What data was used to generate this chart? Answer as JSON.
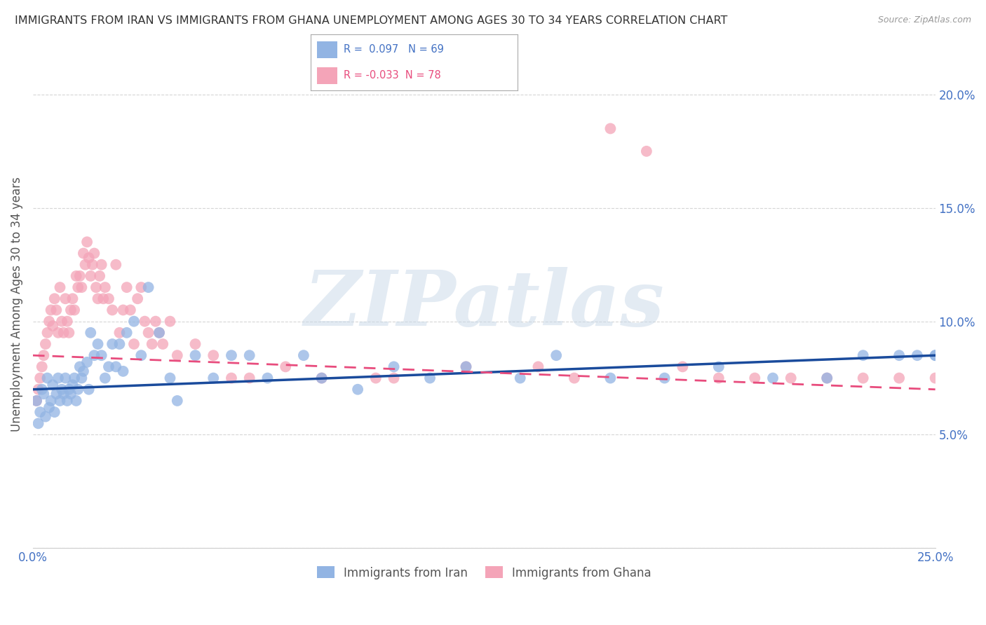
{
  "title": "IMMIGRANTS FROM IRAN VS IMMIGRANTS FROM GHANA UNEMPLOYMENT AMONG AGES 30 TO 34 YEARS CORRELATION CHART",
  "source": "Source: ZipAtlas.com",
  "ylabel": "Unemployment Among Ages 30 to 34 years",
  "xlim": [
    0.0,
    25.0
  ],
  "ylim": [
    0.0,
    21.5
  ],
  "ytick_vals": [
    0.0,
    5.0,
    10.0,
    15.0,
    20.0
  ],
  "ytick_labels": [
    "",
    "5.0%",
    "10.0%",
    "15.0%",
    "20.0%"
  ],
  "series_iran": {
    "label": "Immigrants from Iran",
    "color": "#92b4e3",
    "R": 0.097,
    "N": 69,
    "x": [
      0.1,
      0.15,
      0.2,
      0.25,
      0.3,
      0.35,
      0.4,
      0.45,
      0.5,
      0.55,
      0.6,
      0.65,
      0.7,
      0.75,
      0.8,
      0.85,
      0.9,
      0.95,
      1.0,
      1.05,
      1.1,
      1.15,
      1.2,
      1.25,
      1.3,
      1.35,
      1.4,
      1.5,
      1.55,
      1.6,
      1.7,
      1.8,
      1.9,
      2.0,
      2.1,
      2.2,
      2.3,
      2.4,
      2.5,
      2.6,
      2.8,
      3.0,
      3.2,
      3.5,
      3.8,
      4.0,
      4.5,
      5.0,
      5.5,
      6.0,
      6.5,
      7.5,
      8.0,
      9.0,
      10.0,
      11.0,
      12.0,
      13.5,
      14.5,
      16.0,
      17.5,
      19.0,
      20.5,
      22.0,
      23.0,
      24.0,
      24.5,
      25.0,
      25.0
    ],
    "y": [
      6.5,
      5.5,
      6.0,
      7.0,
      6.8,
      5.8,
      7.5,
      6.2,
      6.5,
      7.2,
      6.0,
      6.8,
      7.5,
      6.5,
      7.0,
      6.8,
      7.5,
      6.5,
      7.0,
      6.8,
      7.2,
      7.5,
      6.5,
      7.0,
      8.0,
      7.5,
      7.8,
      8.2,
      7.0,
      9.5,
      8.5,
      9.0,
      8.5,
      7.5,
      8.0,
      9.0,
      8.0,
      9.0,
      7.8,
      9.5,
      10.0,
      8.5,
      11.5,
      9.5,
      7.5,
      6.5,
      8.5,
      7.5,
      8.5,
      8.5,
      7.5,
      8.5,
      7.5,
      7.0,
      8.0,
      7.5,
      8.0,
      7.5,
      8.5,
      7.5,
      7.5,
      8.0,
      7.5,
      7.5,
      8.5,
      8.5,
      8.5,
      8.5,
      8.5
    ]
  },
  "series_ghana": {
    "label": "Immigrants from Ghana",
    "color": "#f4a4b8",
    "R": -0.033,
    "N": 78,
    "x": [
      0.1,
      0.15,
      0.2,
      0.25,
      0.3,
      0.35,
      0.4,
      0.45,
      0.5,
      0.55,
      0.6,
      0.65,
      0.7,
      0.75,
      0.8,
      0.85,
      0.9,
      0.95,
      1.0,
      1.05,
      1.1,
      1.15,
      1.2,
      1.25,
      1.3,
      1.35,
      1.4,
      1.45,
      1.5,
      1.55,
      1.6,
      1.65,
      1.7,
      1.75,
      1.8,
      1.85,
      1.9,
      1.95,
      2.0,
      2.1,
      2.2,
      2.3,
      2.4,
      2.5,
      2.6,
      2.7,
      2.8,
      2.9,
      3.0,
      3.1,
      3.2,
      3.3,
      3.4,
      3.5,
      3.6,
      3.8,
      4.0,
      4.5,
      5.0,
      5.5,
      6.0,
      7.0,
      8.0,
      9.5,
      10.0,
      12.0,
      14.0,
      15.0,
      16.0,
      17.0,
      18.0,
      19.0,
      20.0,
      21.0,
      22.0,
      23.0,
      24.0,
      25.0
    ],
    "y": [
      6.5,
      7.0,
      7.5,
      8.0,
      8.5,
      9.0,
      9.5,
      10.0,
      10.5,
      9.8,
      11.0,
      10.5,
      9.5,
      11.5,
      10.0,
      9.5,
      11.0,
      10.0,
      9.5,
      10.5,
      11.0,
      10.5,
      12.0,
      11.5,
      12.0,
      11.5,
      13.0,
      12.5,
      13.5,
      12.8,
      12.0,
      12.5,
      13.0,
      11.5,
      11.0,
      12.0,
      12.5,
      11.0,
      11.5,
      11.0,
      10.5,
      12.5,
      9.5,
      10.5,
      11.5,
      10.5,
      9.0,
      11.0,
      11.5,
      10.0,
      9.5,
      9.0,
      10.0,
      9.5,
      9.0,
      10.0,
      8.5,
      9.0,
      8.5,
      7.5,
      7.5,
      8.0,
      7.5,
      7.5,
      7.5,
      8.0,
      8.0,
      7.5,
      18.5,
      17.5,
      8.0,
      7.5,
      7.5,
      7.5,
      7.5,
      7.5,
      7.5,
      7.5
    ]
  },
  "trend_iran": {
    "x_start": 0,
    "x_end": 25,
    "y_start": 7.0,
    "y_end": 8.5
  },
  "trend_ghana": {
    "x_start": 0,
    "x_end": 25,
    "y_start": 8.5,
    "y_end": 7.0
  },
  "watermark": "ZIPatlas",
  "background_color": "#ffffff",
  "grid_color": "#cccccc",
  "title_color": "#333333",
  "axis_color": "#4472c4",
  "legend_R_color_iran": "#4472c4",
  "legend_R_color_ghana": "#e84c7d",
  "trend_color_iran": "#1a4b9c",
  "trend_color_ghana": "#e84c7d"
}
